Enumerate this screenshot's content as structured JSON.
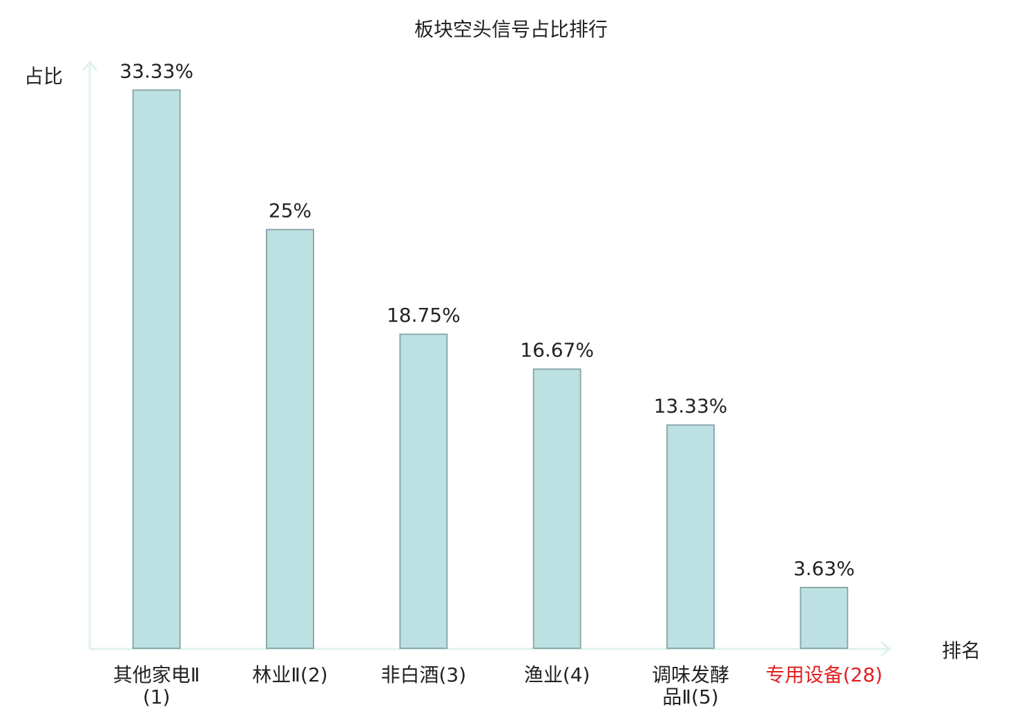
{
  "chart_data": {
    "type": "bar",
    "title": "板块空头信号占比排行",
    "y_label": "占比",
    "x_label": "排名",
    "categories": [
      "其他家电Ⅱ(1)",
      "林业Ⅱ(2)",
      "非白酒(3)",
      "渔业(4)",
      "调味发酵品Ⅱ(5)",
      "专用设备(28)"
    ],
    "values": [
      33.33,
      25,
      18.75,
      16.67,
      13.33,
      3.63
    ],
    "value_labels": [
      "33.33%",
      "25%",
      "18.75%",
      "16.67%",
      "13.33%",
      "3.63%"
    ],
    "color": "#bde0e3",
    "edge_color": "#8aa9aa",
    "highlight": {
      "index": 5,
      "color": "#e02020"
    },
    "ylim": [
      0,
      35
    ]
  }
}
